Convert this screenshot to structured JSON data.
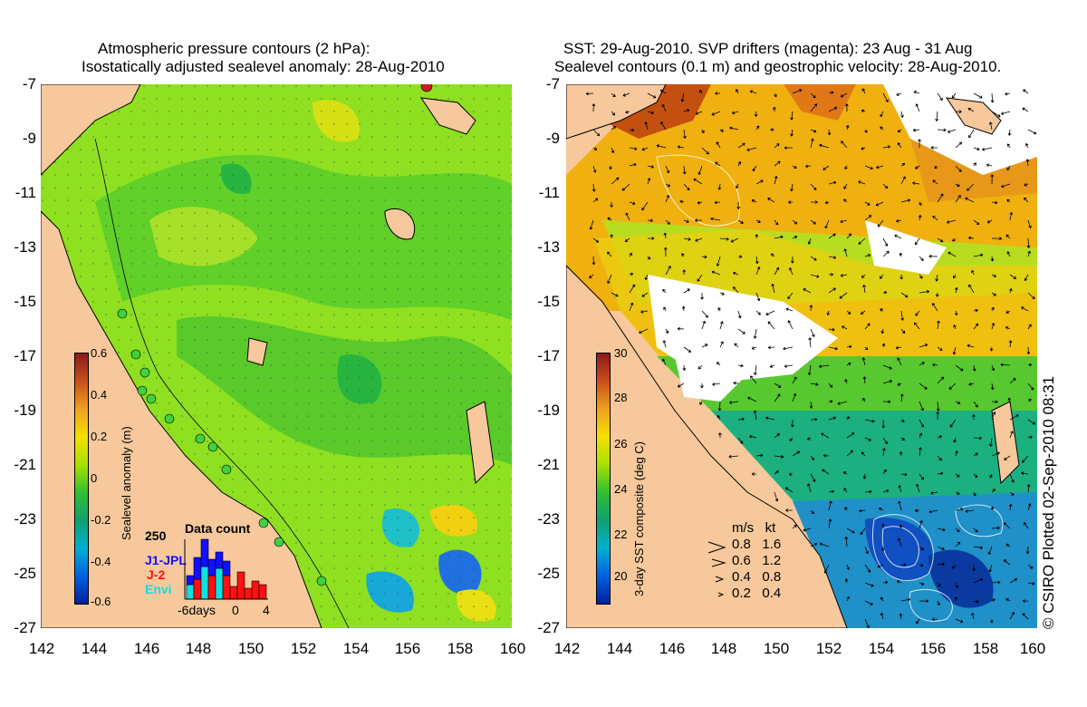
{
  "left_panel": {
    "title_line1": "Atmospheric pressure contours (2 hPa):",
    "title_line2": "Isostatically adjusted sealevel anomaly: 28-Aug-2010",
    "colorbar": {
      "label": "Sealevel anomaly (m)",
      "ticks": [
        "0.6",
        "0.4",
        "0.2",
        "0",
        "-0.2",
        "-0.4",
        "-0.6"
      ],
      "colors": [
        "#8b1a1a",
        "#c8501a",
        "#f0a020",
        "#f5e000",
        "#a8e000",
        "#30c030",
        "#10a070",
        "#00b0d0",
        "#0060e0",
        "#0020a0"
      ]
    },
    "histogram": {
      "title": "Data count",
      "ymax_label": "250",
      "xlabel": "-6days",
      "x0_label": "0",
      "x4_label": "4",
      "series": [
        {
          "name": "J1-JPL",
          "color": "#1010ff"
        },
        {
          "name": "J-2",
          "color": "#ff1010"
        },
        {
          "name": "Envi",
          "color": "#10e0e0"
        }
      ]
    }
  },
  "right_panel": {
    "title_line1": "SST: 29-Aug-2010. SVP drifters (magenta): 23 Aug - 31 Aug",
    "title_line2": "Sealevel contours (0.1 m) and geostrophic velocity: 28-Aug-2010.",
    "colorbar": {
      "label": "3-day SST composite (deg C)",
      "ticks": [
        "30",
        "28",
        "26",
        "24",
        "22",
        "20"
      ],
      "colors": [
        "#8b1a1a",
        "#c8501a",
        "#f0a020",
        "#f5e000",
        "#a8e000",
        "#30c030",
        "#10a070",
        "#00b0d0",
        "#0060e0",
        "#0020a0"
      ]
    },
    "velocity_legend": {
      "header": "m/s   kt",
      "rows": [
        "0.8   1.6",
        "0.6   1.2",
        "0.4   0.8",
        "0.2   0.4"
      ]
    }
  },
  "axes": {
    "y_ticks": [
      "-7",
      "-9",
      "-11",
      "-13",
      "-15",
      "-17",
      "-19",
      "-21",
      "-23",
      "-25",
      "-27"
    ],
    "x_ticks": [
      "142",
      "144",
      "146",
      "148",
      "150",
      "152",
      "154",
      "156",
      "158",
      "160"
    ]
  },
  "copyright": "© CSIRO Plotted 02-Sep-2010 08:31"
}
